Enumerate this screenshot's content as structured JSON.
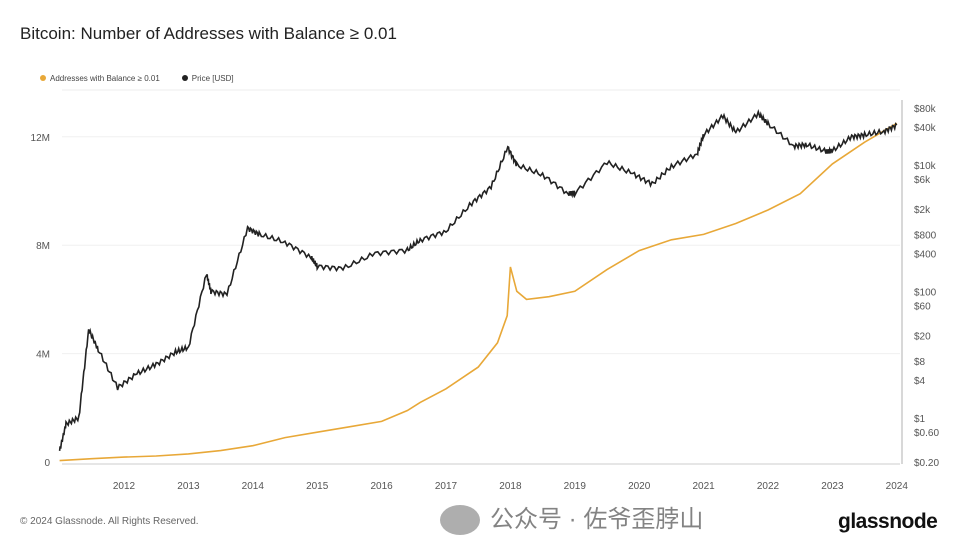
{
  "chart_data": {
    "type": "line",
    "title": "Bitcoin: Number of Addresses with Balance ≥ 0.01",
    "legend": {
      "placement": "top-left",
      "entries": [
        "Addresses with Balance ≥ 0.01",
        "Price [USD]"
      ]
    },
    "colors": {
      "addresses": "#e8a838",
      "price": "#222222"
    },
    "x_ticks": [
      "2012",
      "2013",
      "2014",
      "2015",
      "2016",
      "2017",
      "2018",
      "2019",
      "2020",
      "2021",
      "2022",
      "2023",
      "2024"
    ],
    "y_left": {
      "ticks": [
        "0",
        "4M",
        "8M",
        "12M"
      ],
      "values": [
        0,
        4000000,
        8000000,
        12000000
      ],
      "range": [
        0,
        12900000
      ]
    },
    "y_right": {
      "scale": "log",
      "ticks": [
        "$80k",
        "$40k",
        "$10k",
        "$6k",
        "$2k",
        "$800",
        "$400",
        "$100",
        "$60",
        "$20",
        "$8",
        "$4",
        "$1",
        "$0.60",
        "$0.20"
      ],
      "values": [
        80000,
        40000,
        10000,
        6000,
        2000,
        800,
        400,
        100,
        60,
        20,
        8,
        4,
        1,
        0.6,
        0.2
      ],
      "range": [
        0.2,
        80000
      ]
    },
    "series": [
      {
        "name": "Addresses with Balance ≥ 0.01",
        "axis": "left",
        "x": [
          2011.0,
          2011.5,
          2012,
          2012.5,
          2013,
          2013.5,
          2014,
          2014.5,
          2015,
          2015.5,
          2016,
          2016.4,
          2016.6,
          2017,
          2017.5,
          2017.8,
          2017.95,
          2018.0,
          2018.1,
          2018.25,
          2018.6,
          2019,
          2019.5,
          2020,
          2020.5,
          2021,
          2021.5,
          2022,
          2022.5,
          2023,
          2023.5,
          2024.0
        ],
        "y": [
          0.05,
          0.12,
          0.18,
          0.22,
          0.3,
          0.42,
          0.6,
          0.9,
          1.1,
          1.3,
          1.5,
          1.9,
          2.2,
          2.7,
          3.5,
          4.4,
          5.4,
          7.2,
          6.3,
          6.0,
          6.1,
          6.3,
          7.1,
          7.8,
          8.2,
          8.4,
          8.8,
          9.3,
          9.9,
          11.0,
          11.8,
          12.5
        ]
      },
      {
        "name": "Price [USD]",
        "axis": "right",
        "x": [
          2011.0,
          2011.1,
          2011.3,
          2011.45,
          2011.6,
          2011.9,
          2012.2,
          2012.5,
          2012.8,
          2013.0,
          2013.28,
          2013.35,
          2013.6,
          2013.92,
          2014.1,
          2014.5,
          2014.9,
          2015.0,
          2015.4,
          2015.9,
          2016.4,
          2016.6,
          2017.0,
          2017.4,
          2017.7,
          2017.96,
          2018.1,
          2018.5,
          2018.9,
          2019.0,
          2019.5,
          2019.9,
          2020.2,
          2020.5,
          2020.9,
          2021.0,
          2021.3,
          2021.5,
          2021.85,
          2022.0,
          2022.4,
          2022.6,
          2022.9,
          2023.0,
          2023.3,
          2023.5,
          2023.8,
          2024.0
        ],
        "y": [
          0.3,
          0.8,
          1,
          25,
          12,
          3,
          5,
          7,
          11,
          13,
          190,
          100,
          90,
          1000,
          800,
          600,
          350,
          250,
          230,
          400,
          450,
          650,
          900,
          2500,
          4500,
          19000,
          10000,
          7000,
          3500,
          3600,
          11000,
          7300,
          5000,
          9500,
          15000,
          30000,
          60000,
          33000,
          65000,
          45000,
          20000,
          21000,
          16500,
          16800,
          28000,
          30000,
          34000,
          43000
        ]
      }
    ]
  },
  "footer": {
    "copyright": "© 2024 Glassnode. All Rights Reserved.",
    "brand": "glassnode"
  },
  "watermark": {
    "text": "公众号 · 佐爷歪脖山"
  }
}
